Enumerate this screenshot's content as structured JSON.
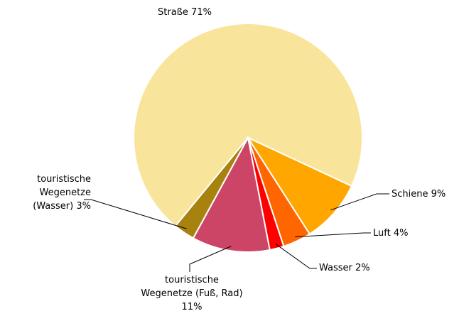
{
  "chart_data": {
    "type": "pie",
    "categories": [
      "Straße",
      "Schiene",
      "Luft",
      "Wasser",
      "touristische Wegenetze (Fuß, Rad)",
      "touristische Wegenetze (Wasser)"
    ],
    "values": [
      71,
      9,
      4,
      2,
      11,
      3
    ],
    "value_labels": [
      "71%",
      "9%",
      "4%",
      "2%",
      "11%",
      "3%"
    ],
    "colors": [
      "#f8e59b",
      "#ffa600",
      "#ff6600",
      "#ff0000",
      "#cc4466",
      "#a8820f"
    ]
  }
}
